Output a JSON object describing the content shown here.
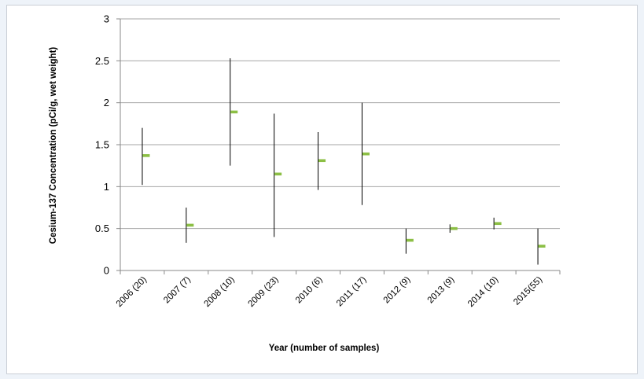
{
  "chart_data": {
    "type": "scatter",
    "title": "",
    "xlabel": "Year (number of samples)",
    "ylabel": "Cesium-137 Concentration (pCi/g, wet weight)",
    "ylim": [
      0,
      3
    ],
    "yticks": [
      "0",
      "0.5",
      "1",
      "1.5",
      "2",
      "2.5",
      "3"
    ],
    "categories": [
      "2006 (20)",
      "2007 (7)",
      "2008 (10)",
      "2009 (23)",
      "2010 (6)",
      "2011 (17)",
      "2012 (9)",
      "2013 (9)",
      "2014 (10)",
      "2015(55)"
    ],
    "series": [
      {
        "values": [
          1.37,
          0.54,
          1.89,
          1.15,
          1.31,
          1.39,
          0.36,
          0.5,
          0.56,
          0.29
        ]
      },
      {
        "values": [
          1.7,
          0.75,
          2.53,
          1.87,
          1.65,
          2.0,
          0.5,
          0.55,
          0.63,
          0.5
        ]
      },
      {
        "values": [
          1.02,
          0.33,
          1.25,
          0.4,
          0.96,
          0.78,
          0.2,
          0.45,
          0.49,
          0.07
        ]
      }
    ],
    "grid": true,
    "colors": {
      "marker": "#8cbf45",
      "range_line": "#000000",
      "grid": "#a6a6a6",
      "axis": "#888888"
    }
  }
}
